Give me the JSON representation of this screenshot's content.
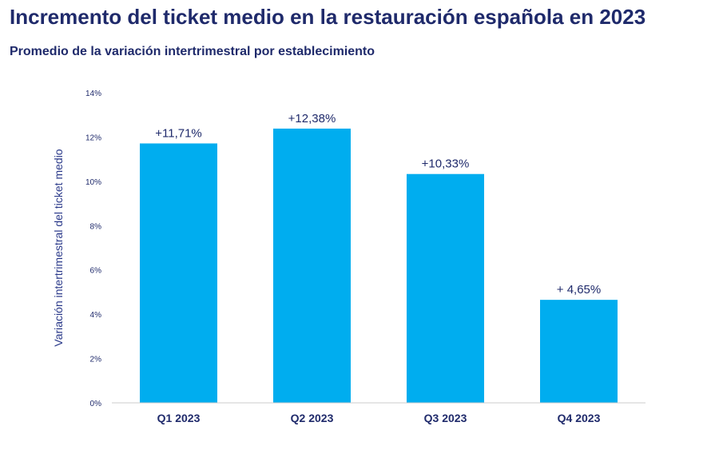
{
  "header": {
    "title": "Incremento del ticket medio en la restauración española en 2023",
    "subtitle": "Promedio de la variación intertrimestral por establecimiento"
  },
  "colors": {
    "bar": "#00adef",
    "text": "#1f2a6b",
    "axis": "#cccccc"
  },
  "chart_data": {
    "type": "bar",
    "title": "Incremento del ticket medio en la restauración española en 2023",
    "subtitle": "Promedio de la variación intertrimestral por establecimiento",
    "categories": [
      "Q1 2023",
      "Q2 2023",
      "Q3 2023",
      "Q4 2023"
    ],
    "values": [
      11.71,
      12.38,
      10.33,
      4.65
    ],
    "data_labels": [
      "+11,71%",
      "+12,38%",
      "+10,33%",
      "+ 4,65%"
    ],
    "xlabel": "",
    "ylabel": "Variación intertrimestral del ticket medio",
    "ylim": [
      0,
      14
    ],
    "yticks": [
      0,
      2,
      4,
      6,
      8,
      10,
      12,
      14
    ],
    "ytick_labels": [
      "0%",
      "2%",
      "4%",
      "6%",
      "8%",
      "10%",
      "12%",
      "14%"
    ],
    "grid": false,
    "legend": "none"
  }
}
